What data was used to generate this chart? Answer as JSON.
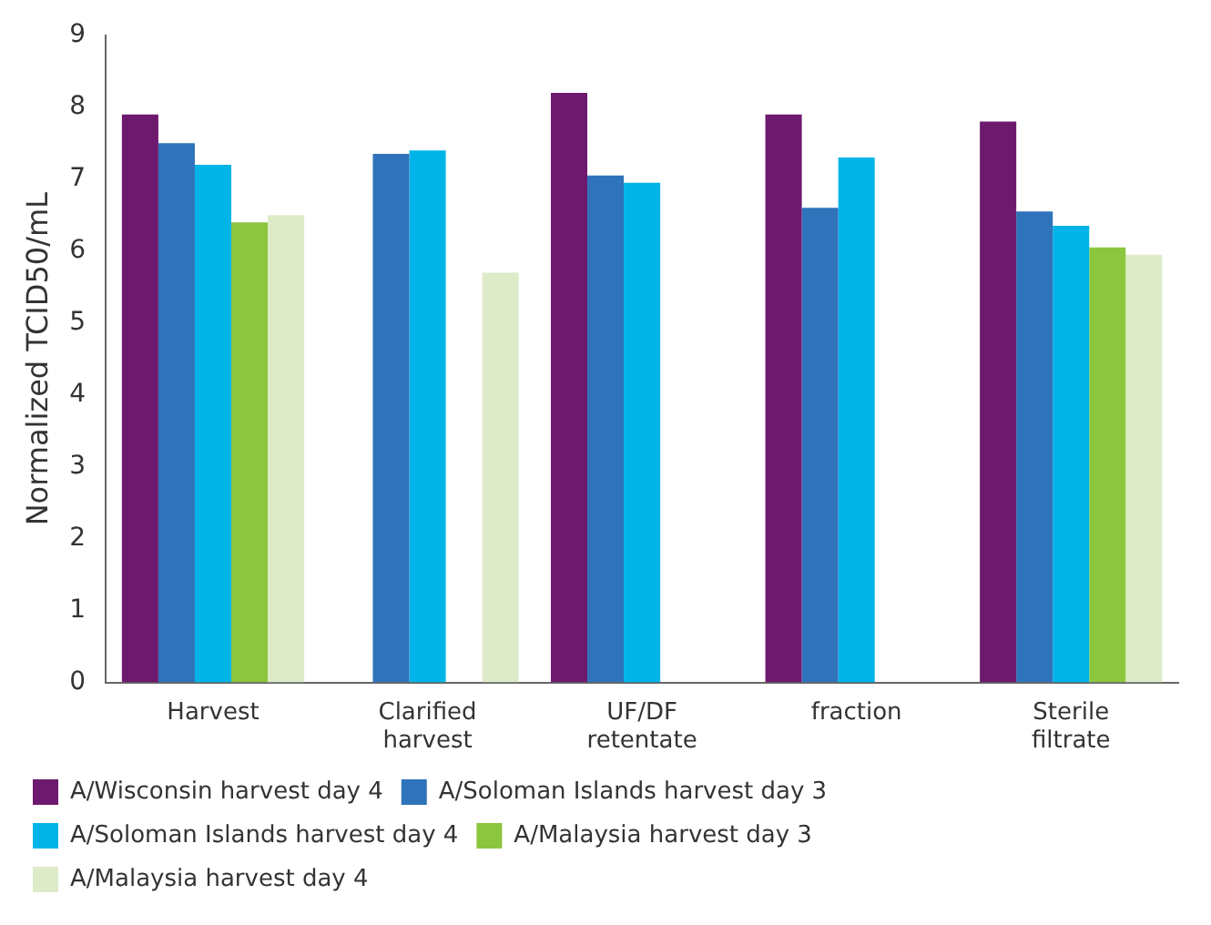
{
  "chart_data": {
    "type": "bar",
    "ylabel": "Normalized TCID50/mL",
    "categories": [
      "Harvest",
      "Clarified harvest",
      "UF/DF retentate",
      "fraction",
      "Sterile filtrate"
    ],
    "series": [
      {
        "name": "A/Wisconsin harvest day 4",
        "color": "#6d1a6e",
        "values": [
          7.9,
          null,
          8.2,
          7.9,
          7.8
        ]
      },
      {
        "name": "A/Soloman Islands harvest day 3",
        "color": "#2f73ba",
        "values": [
          7.5,
          7.35,
          7.05,
          6.6,
          6.55
        ]
      },
      {
        "name": "A/Soloman Islands harvest day 4",
        "color": "#00b4e8",
        "values": [
          7.2,
          7.4,
          6.95,
          7.3,
          6.35
        ]
      },
      {
        "name": "A/Malaysia harvest day 3",
        "color": "#8cc63f",
        "values": [
          6.4,
          null,
          null,
          null,
          6.05
        ]
      },
      {
        "name": "A/Malaysia harvest day 4",
        "color": "#ddebc8",
        "values": [
          6.5,
          5.7,
          null,
          null,
          5.95
        ]
      }
    ],
    "ylim": [
      0,
      9
    ],
    "yticks": [
      0,
      1,
      2,
      3,
      4,
      5,
      6,
      7,
      8,
      9
    ],
    "grid": false,
    "legend": "bottom"
  }
}
